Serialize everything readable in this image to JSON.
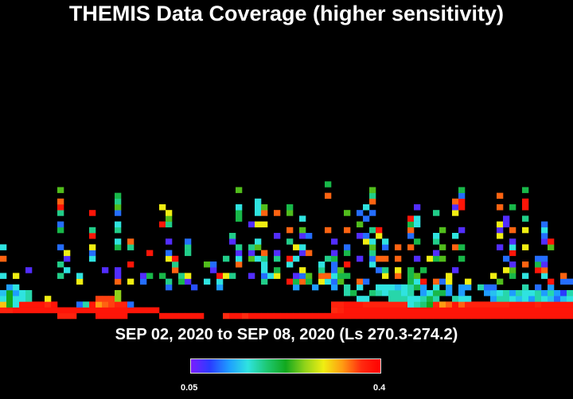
{
  "chart_data": {
    "type": "heatmap",
    "title": "THEMIS Data Coverage (higher sensitivity)",
    "date_range": "SEP 02, 2020 to SEP 08, 2020 (Ls 270.3-274.2)",
    "colorbar": {
      "min_label": "0.05",
      "max_label": "0.4",
      "min": 0.05,
      "max": 0.4,
      "colors": [
        "#7a1dff",
        "#2a3cff",
        "#1e9dff",
        "#2fe3e0",
        "#1ec873",
        "#12a81e",
        "#8fd21a",
        "#f0ee12",
        "#ff9b12",
        "#ff2a10",
        "#ff0000"
      ]
    },
    "x_cells": 90,
    "y_cells": 50,
    "cells": [
      [
        15,
        1,
        0.95
      ],
      [
        16,
        1,
        0.95
      ],
      [
        17,
        1,
        0.95
      ],
      [
        18,
        1,
        0.95
      ],
      [
        19,
        1,
        0.95
      ],
      [
        25,
        1,
        0.95
      ],
      [
        26,
        1,
        0.95
      ],
      [
        27,
        1,
        0.95
      ],
      [
        28,
        1,
        0.95
      ],
      [
        29,
        1,
        0.95
      ],
      [
        30,
        1,
        0.95
      ],
      [
        31,
        1,
        0.95
      ],
      [
        35,
        1,
        0.9
      ],
      [
        36,
        1,
        0.95
      ],
      [
        37,
        1,
        0.95
      ],
      [
        38,
        1,
        0.9
      ],
      [
        39,
        1,
        0.95
      ],
      [
        40,
        1,
        0.95
      ],
      [
        41,
        1,
        0.95
      ],
      [
        42,
        1,
        0.95
      ],
      [
        43,
        1,
        0.95
      ],
      [
        44,
        1,
        0.95
      ],
      [
        45,
        1,
        0.95
      ],
      [
        46,
        1,
        0.95
      ],
      [
        47,
        1,
        0.95
      ],
      [
        48,
        1,
        0.95
      ],
      [
        49,
        1,
        0.95
      ],
      [
        50,
        1,
        0.95
      ],
      [
        51,
        1,
        0.95
      ],
      [
        52,
        1,
        0.95
      ],
      [
        53,
        1,
        0.95
      ],
      [
        54,
        1,
        0.95
      ],
      [
        55,
        1,
        0.95
      ],
      [
        56,
        1,
        0.95
      ],
      [
        57,
        1,
        0.95
      ],
      [
        58,
        1,
        0.95
      ],
      [
        59,
        1,
        0.95
      ],
      [
        60,
        1,
        0.95
      ],
      [
        61,
        1,
        0.95
      ],
      [
        62,
        1,
        0.95
      ],
      [
        63,
        1,
        0.95
      ],
      [
        64,
        1,
        0.95
      ],
      [
        65,
        1,
        0.95
      ],
      [
        66,
        1,
        0.95
      ],
      [
        67,
        1,
        0.95
      ],
      [
        68,
        1,
        0.95
      ],
      [
        69,
        1,
        0.95
      ],
      [
        70,
        1,
        0.95
      ],
      [
        71,
        1,
        0.95
      ],
      [
        72,
        1,
        0.95
      ],
      [
        73,
        1,
        0.95
      ],
      [
        74,
        1,
        0.95
      ],
      [
        75,
        1,
        0.95
      ],
      [
        76,
        1,
        0.95
      ],
      [
        77,
        1,
        0.95
      ],
      [
        78,
        1,
        0.95
      ],
      [
        79,
        1,
        0.95
      ],
      [
        80,
        1,
        0.95
      ],
      [
        81,
        1,
        0.95
      ],
      [
        82,
        1,
        0.95
      ],
      [
        83,
        1,
        0.95
      ],
      [
        84,
        1,
        0.95
      ],
      [
        85,
        1,
        0.95
      ],
      [
        86,
        1,
        0.95
      ],
      [
        87,
        1,
        0.95
      ],
      [
        88,
        1,
        0.95
      ],
      [
        89,
        1,
        0.95
      ],
      [
        90,
        1,
        0.95
      ],
      [
        9,
        1,
        0.92
      ],
      [
        10,
        1,
        0.92
      ],
      [
        11,
        1,
        0.92
      ],
      [
        0,
        2,
        0.92
      ],
      [
        1,
        2,
        0.92
      ],
      [
        2,
        2,
        0.95
      ],
      [
        3,
        2,
        0.95
      ],
      [
        4,
        2,
        0.95
      ],
      [
        5,
        2,
        0.95
      ],
      [
        6,
        2,
        0.95
      ],
      [
        7,
        2,
        0.95
      ],
      [
        8,
        2,
        0.95
      ],
      [
        9,
        2,
        0.95
      ],
      [
        10,
        2,
        0.95
      ],
      [
        11,
        2,
        0.95
      ],
      [
        12,
        2,
        0.95
      ],
      [
        13,
        2,
        0.95
      ],
      [
        14,
        2,
        0.95
      ],
      [
        15,
        2,
        0.95
      ],
      [
        16,
        2,
        0.95
      ],
      [
        17,
        2,
        0.95
      ],
      [
        18,
        2,
        0.95
      ],
      [
        19,
        2,
        0.95
      ],
      [
        20,
        2,
        0.95
      ],
      [
        21,
        2,
        0.95
      ],
      [
        22,
        2,
        0.95
      ],
      [
        23,
        2,
        0.95
      ],
      [
        24,
        2,
        0.95
      ],
      [
        52,
        2,
        0.9
      ],
      [
        53,
        2,
        0.92
      ],
      [
        54,
        2,
        0.95
      ],
      [
        55,
        2,
        0.95
      ],
      [
        56,
        2,
        0.95
      ],
      [
        57,
        2,
        0.95
      ],
      [
        58,
        2,
        0.95
      ],
      [
        59,
        2,
        0.95
      ],
      [
        60,
        2,
        0.95
      ],
      [
        61,
        2,
        0.95
      ],
      [
        62,
        2,
        0.95
      ],
      [
        63,
        2,
        0.95
      ],
      [
        64,
        2,
        0.95
      ],
      [
        65,
        2,
        0.95
      ],
      [
        66,
        2,
        0.95
      ],
      [
        67,
        2,
        0.95
      ],
      [
        68,
        2,
        0.95
      ],
      [
        69,
        2,
        0.95
      ],
      [
        70,
        2,
        0.95
      ],
      [
        71,
        2,
        0.95
      ],
      [
        72,
        2,
        0.95
      ],
      [
        73,
        2,
        0.95
      ],
      [
        74,
        2,
        0.95
      ],
      [
        75,
        2,
        0.95
      ],
      [
        76,
        2,
        0.95
      ],
      [
        77,
        2,
        0.95
      ],
      [
        78,
        2,
        0.95
      ],
      [
        79,
        2,
        0.95
      ],
      [
        80,
        2,
        0.95
      ],
      [
        81,
        2,
        0.95
      ],
      [
        82,
        2,
        0.95
      ],
      [
        83,
        2,
        0.95
      ],
      [
        84,
        2,
        0.95
      ],
      [
        85,
        2,
        0.95
      ],
      [
        86,
        2,
        0.95
      ],
      [
        87,
        2,
        0.95
      ],
      [
        88,
        2,
        0.95
      ],
      [
        89,
        2,
        0.95
      ],
      [
        0,
        3,
        0.75
      ],
      [
        1,
        3,
        0.5
      ],
      [
        2,
        3,
        0.3
      ],
      [
        3,
        3,
        0.95
      ],
      [
        4,
        3,
        0.95
      ],
      [
        5,
        3,
        0.95
      ],
      [
        6,
        3,
        0.95
      ],
      [
        7,
        3,
        0.9
      ],
      [
        8,
        3,
        0.95
      ],
      [
        12,
        3,
        0.15
      ],
      [
        13,
        3,
        0.35
      ],
      [
        14,
        3,
        0.95
      ],
      [
        15,
        3,
        0.8
      ],
      [
        16,
        3,
        0.85
      ],
      [
        17,
        3,
        0.88
      ],
      [
        18,
        3,
        0.92
      ],
      [
        19,
        3,
        0.92
      ],
      [
        20,
        3,
        0.15
      ],
      [
        52,
        3,
        0.92
      ],
      [
        53,
        3,
        0.92
      ],
      [
        54,
        3,
        0.95
      ],
      [
        55,
        3,
        0.95
      ],
      [
        56,
        3,
        0.95
      ],
      [
        57,
        3,
        0.92
      ],
      [
        58,
        3,
        0.92
      ],
      [
        59,
        3,
        0.92
      ],
      [
        60,
        3,
        0.92
      ],
      [
        61,
        3,
        0.92
      ],
      [
        62,
        3,
        0.92
      ],
      [
        63,
        3,
        0.92
      ],
      [
        64,
        3,
        0.3
      ],
      [
        65,
        3,
        0.35
      ],
      [
        66,
        3,
        0.4
      ],
      [
        67,
        3,
        0.5
      ],
      [
        68,
        3,
        0.92
      ],
      [
        69,
        3,
        0.8
      ],
      [
        70,
        3,
        0.85
      ],
      [
        71,
        3,
        0.95
      ],
      [
        72,
        3,
        0.85
      ],
      [
        73,
        3,
        0.92
      ],
      [
        74,
        3,
        0.92
      ],
      [
        75,
        3,
        0.92
      ],
      [
        76,
        3,
        0.92
      ],
      [
        77,
        3,
        0.92
      ],
      [
        78,
        3,
        0.92
      ],
      [
        79,
        3,
        0.92
      ],
      [
        80,
        3,
        0.95
      ],
      [
        81,
        3,
        0.95
      ],
      [
        82,
        3,
        0.95
      ],
      [
        83,
        3,
        0.95
      ],
      [
        84,
        3,
        0.92
      ],
      [
        85,
        3,
        0.95
      ],
      [
        86,
        3,
        0.95
      ],
      [
        87,
        3,
        0.95
      ],
      [
        88,
        3,
        0.95
      ],
      [
        89,
        3,
        0.95
      ],
      [
        0,
        4,
        0.3
      ],
      [
        1,
        4,
        0.5
      ],
      [
        2,
        4,
        0.3
      ],
      [
        3,
        4,
        0.3
      ],
      [
        4,
        4,
        0.35
      ],
      [
        7,
        4,
        0.7
      ],
      [
        15,
        4,
        0.88
      ],
      [
        16,
        4,
        0.88
      ],
      [
        17,
        4,
        0.88
      ],
      [
        18,
        4,
        0.6
      ],
      [
        56,
        4,
        0.3
      ],
      [
        57,
        4,
        0.3
      ],
      [
        61,
        4,
        0.35
      ],
      [
        62,
        4,
        0.35
      ],
      [
        63,
        4,
        0.35
      ],
      [
        64,
        4,
        0.3
      ],
      [
        65,
        4,
        0.3
      ],
      [
        66,
        4,
        0.35
      ],
      [
        67,
        4,
        0.45
      ],
      [
        68,
        4,
        0.35
      ],
      [
        71,
        4,
        0.35
      ],
      [
        72,
        4,
        0.3
      ],
      [
        73,
        4,
        0.3
      ],
      [
        77,
        4,
        0.2
      ],
      [
        78,
        4,
        0.35
      ],
      [
        79,
        4,
        0.35
      ],
      [
        80,
        4,
        0.3
      ],
      [
        81,
        4,
        0.25
      ],
      [
        82,
        4,
        0.3
      ],
      [
        83,
        4,
        0.2
      ],
      [
        84,
        4,
        0.35
      ],
      [
        85,
        4,
        0.3
      ],
      [
        86,
        4,
        0.25
      ],
      [
        87,
        4,
        0.15
      ],
      [
        88,
        4,
        0.25
      ],
      [
        89,
        4,
        0.3
      ],
      [
        0,
        5,
        0.25
      ],
      [
        1,
        5,
        0.5
      ],
      [
        2,
        5,
        0.2
      ],
      [
        3,
        5,
        0.3
      ],
      [
        4,
        5,
        0.35
      ],
      [
        18,
        5,
        0.6
      ],
      [
        54,
        5,
        0.35
      ],
      [
        55,
        5,
        0.45
      ],
      [
        58,
        5,
        0.4
      ],
      [
        59,
        5,
        0.35
      ],
      [
        60,
        5,
        0.3
      ],
      [
        61,
        5,
        0.35
      ],
      [
        62,
        5,
        0.35
      ],
      [
        63,
        5,
        0.3
      ],
      [
        64,
        5,
        0.35
      ],
      [
        66,
        5,
        0.2
      ],
      [
        67,
        5,
        0.3
      ],
      [
        68,
        5,
        0.45
      ],
      [
        69,
        5,
        0.45
      ],
      [
        70,
        5,
        0.2
      ],
      [
        72,
        5,
        0.2
      ],
      [
        76,
        5,
        0.2
      ],
      [
        77,
        5,
        0.25
      ],
      [
        78,
        5,
        0.3
      ],
      [
        79,
        5,
        0.35
      ],
      [
        80,
        5,
        0.2
      ],
      [
        81,
        5,
        0.35
      ],
      [
        82,
        5,
        0.3
      ],
      [
        83,
        5,
        0.3
      ],
      [
        84,
        5,
        0.35
      ],
      [
        85,
        5,
        0.2
      ],
      [
        86,
        5,
        0.35
      ],
      [
        87,
        5,
        0.2
      ],
      [
        88,
        5,
        0.1
      ],
      [
        89,
        5,
        0.35
      ],
      [
        1,
        6,
        0.2
      ],
      [
        2,
        6,
        0.3
      ],
      [
        26,
        6,
        0.15
      ],
      [
        30,
        6,
        0.12
      ],
      [
        34,
        6,
        0.2
      ],
      [
        46,
        6,
        0.2
      ],
      [
        49,
        6,
        0.2
      ],
      [
        52,
        6,
        0.2
      ],
      [
        54,
        6,
        0.35
      ],
      [
        56,
        6,
        0.3
      ],
      [
        59,
        6,
        0.3
      ],
      [
        60,
        6,
        0.3
      ],
      [
        61,
        6,
        0.3
      ],
      [
        62,
        6,
        0.25
      ],
      [
        63,
        6,
        0.3
      ],
      [
        64,
        6,
        0.35
      ],
      [
        65,
        6,
        0.45
      ],
      [
        66,
        6,
        0.2
      ],
      [
        68,
        6,
        0.3
      ],
      [
        70,
        6,
        0.2
      ],
      [
        72,
        6,
        0.2
      ],
      [
        73,
        6,
        0.2
      ],
      [
        75,
        6,
        0.35
      ],
      [
        76,
        6,
        0.15
      ],
      [
        77,
        6,
        0.15
      ],
      [
        82,
        6,
        0.35
      ],
      [
        84,
        6,
        0.15
      ],
      [
        86,
        6,
        0.2
      ]
    ]
  }
}
